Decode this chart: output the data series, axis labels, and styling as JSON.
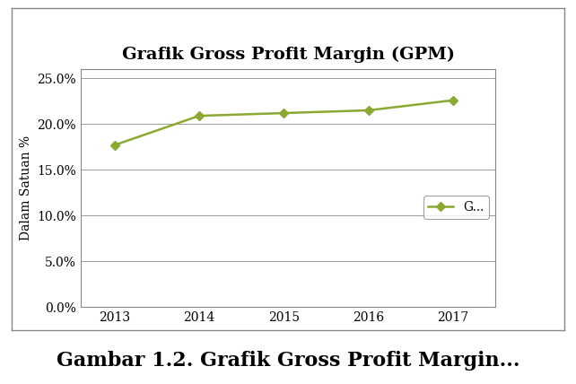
{
  "title": "Grafik Gross Profit Margin (GPM)",
  "xlabel": "",
  "ylabel": "Dalam Satuan %",
  "caption": "Gambar 1.2. Grafik Gross Profit Margin...",
  "x": [
    2013,
    2014,
    2015,
    2016,
    2017
  ],
  "y": [
    0.177,
    0.209,
    0.212,
    0.215,
    0.226
  ],
  "ylim": [
    0.0,
    0.26
  ],
  "yticks": [
    0.0,
    0.05,
    0.1,
    0.15,
    0.2,
    0.25
  ],
  "ytick_labels": [
    "0.0%",
    "5.0%",
    "10.0%",
    "15.0%",
    "20.0%",
    "25.0%"
  ],
  "line_color": "#8BA832",
  "marker": "D",
  "marker_size": 5,
  "legend_label": "G...",
  "title_fontsize": 14,
  "label_fontsize": 10,
  "tick_fontsize": 10,
  "caption_fontsize": 16,
  "background_color": "#ffffff",
  "outer_background": "#f0f0f0",
  "grid_color": "#999999",
  "title_fontweight": "bold",
  "border_color": "#888888",
  "xlim_left": 2012.6,
  "xlim_right": 2017.5
}
